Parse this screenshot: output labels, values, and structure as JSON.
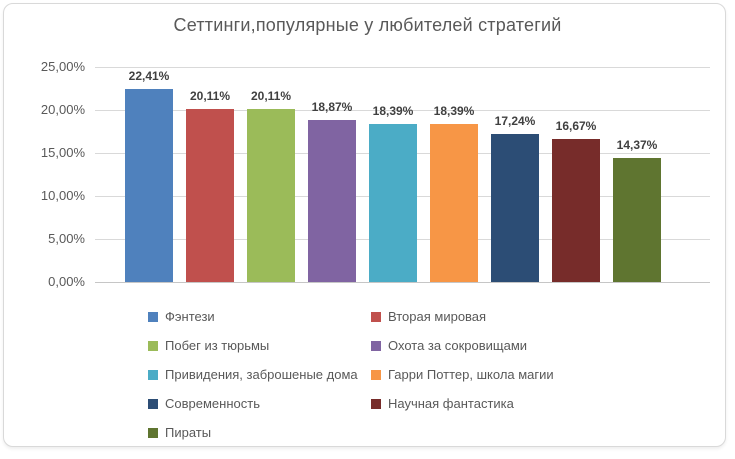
{
  "frame": {
    "background": "#ffffff",
    "border_color": "#d9d9d9"
  },
  "styles": {
    "title_color": "#595959",
    "axis_label_color": "#595959",
    "data_label_color": "#404040",
    "gridline_color": "#d9d9d9"
  },
  "chart_data": {
    "type": "bar",
    "title": "Сеттинги,популярные у любителей стратегий",
    "categories": [
      "Фэнтези",
      "Вторая мировая",
      "Побег из тюрьмы",
      "Охота за сокровищами",
      "Привидения, заброшеные дома",
      "Гарри Поттер, школа магии",
      "Современность",
      "Научная фантастика",
      "Пираты"
    ],
    "values": [
      22.41,
      20.11,
      20.11,
      18.87,
      18.39,
      18.39,
      17.24,
      16.67,
      14.37
    ],
    "value_labels": [
      "22,41%",
      "20,11%",
      "20,11%",
      "18,87%",
      "18,39%",
      "18,39%",
      "17,24%",
      "16,67%",
      "14,37%"
    ],
    "colors": [
      "#4f81bd",
      "#c0504d",
      "#9bbb59",
      "#8064a2",
      "#4bacc6",
      "#f79646",
      "#2c4d75",
      "#772c2a",
      "#5f7530"
    ],
    "xlabel": "",
    "ylabel": "",
    "ylim": [
      0,
      25
    ],
    "y_ticks": [
      {
        "value": 0,
        "label": "0,00%"
      },
      {
        "value": 5,
        "label": "5,00%"
      },
      {
        "value": 10,
        "label": "10,00%"
      },
      {
        "value": 15,
        "label": "15,00%"
      },
      {
        "value": 20,
        "label": "20,00%"
      },
      {
        "value": 25,
        "label": "25,00%"
      }
    ],
    "grid": true,
    "legend_position": "bottom",
    "legend_columns": 2
  }
}
